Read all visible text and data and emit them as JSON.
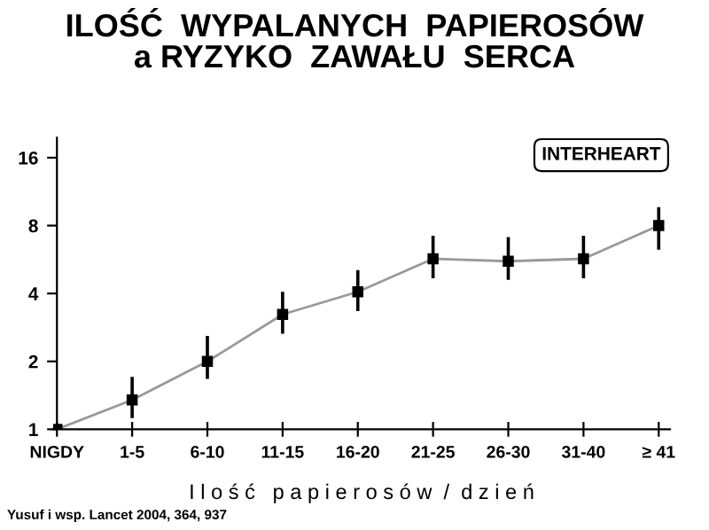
{
  "chart_data": {
    "type": "line",
    "title": "ILOŚĆ  WYPALANYCH  PAPIEROSÓW\na RYZYKO  ZAWAŁU  SERCA",
    "xlabel": "I l o ś ć   p a p i e r o s ó w  /  d z i e ń",
    "categories": [
      "NIGDY",
      "1-5",
      "6-10",
      "11-15",
      "16-20",
      "21-25",
      "26-30",
      "31-40",
      "≥ 41"
    ],
    "series": [
      {
        "color": "#999999",
        "values": [
          1,
          1.35,
          2.0,
          3.23,
          4.07,
          5.7,
          5.56,
          5.7,
          8.0
        ],
        "errors": [
          null,
          [
            1.14,
            1.68
          ],
          [
            1.7,
            2.55
          ],
          [
            2.7,
            4.0
          ],
          [
            3.4,
            5.0
          ],
          [
            4.75,
            7.1
          ],
          [
            4.67,
            7.0
          ],
          [
            4.75,
            7.1
          ],
          [
            6.35,
            9.5
          ]
        ]
      }
    ],
    "log": true,
    "ylim": [
      1,
      19.6
    ],
    "yticks": [
      1,
      2,
      4,
      8,
      16
    ],
    "marker": "square",
    "line_style": "solid",
    "grid": false,
    "legend": false,
    "annotations": [
      "INTERHEART",
      "Yusuf i wsp. Lancet 2004, 364, 937"
    ]
  }
}
